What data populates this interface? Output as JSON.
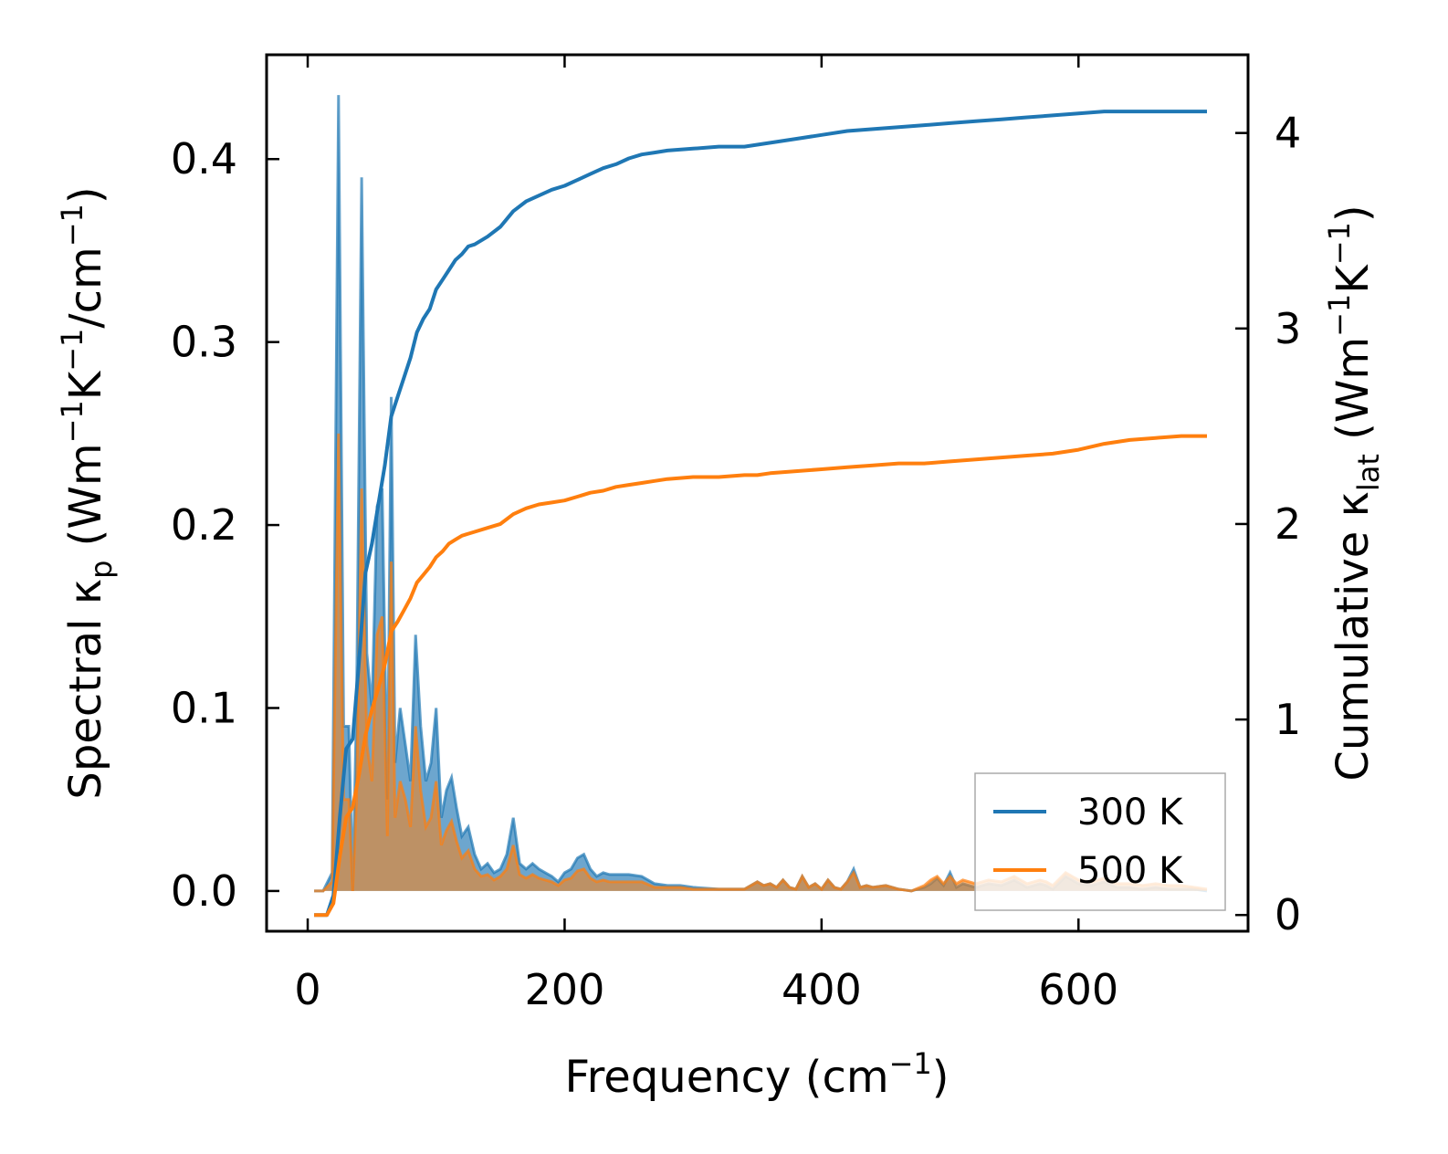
{
  "chart_data": {
    "type": "line",
    "title": "",
    "xlabel": {
      "text": "Frequency (cm",
      "sup": "−1",
      "suffix": ")"
    },
    "ylabel_left": {
      "prefix": "Spectral κ",
      "sub": "p",
      "middle": " (Wm",
      "sup1": "−1",
      "k": "K",
      "sup2": "−1",
      "tail": "/cm",
      "sup3": "−1",
      "end": ")"
    },
    "ylabel_right": {
      "prefix": "Cumulative κ",
      "sub": "lat",
      "middle": " (Wm",
      "sup1": "−1",
      "k": "K",
      "sup2": "−1",
      "end": ")"
    },
    "xlim": [
      -32,
      732
    ],
    "ylim_left": [
      -0.022,
      0.457
    ],
    "ylim_right": [
      -0.083,
      4.4
    ],
    "x_ticks": [
      0,
      200,
      400,
      600
    ],
    "x_tick_labels": [
      "0",
      "200",
      "400",
      "600"
    ],
    "y_left_ticks": [
      0.0,
      0.1,
      0.2,
      0.3,
      0.4
    ],
    "y_left_tick_labels": [
      "0.0",
      "0.1",
      "0.2",
      "0.3",
      "0.4"
    ],
    "y_right_ticks": [
      0,
      1,
      2,
      3,
      4
    ],
    "y_right_tick_labels": [
      "0",
      "1",
      "2",
      "3",
      "4"
    ],
    "colors": {
      "s300": "#1f77b4",
      "s500": "#ff7f0e"
    },
    "legend": {
      "position": "lower-right",
      "entries": [
        "300 K",
        "500 K"
      ]
    },
    "spectral": {
      "x": [
        5,
        12,
        19,
        24,
        28,
        32,
        35,
        38,
        42,
        46,
        50,
        54,
        58,
        62,
        65,
        68,
        72,
        76,
        80,
        84,
        88,
        92,
        96,
        100,
        104,
        108,
        112,
        116,
        120,
        125,
        130,
        135,
        140,
        145,
        150,
        155,
        160,
        165,
        170,
        175,
        180,
        185,
        190,
        195,
        200,
        205,
        210,
        215,
        220,
        225,
        230,
        235,
        240,
        250,
        260,
        270,
        280,
        290,
        300,
        320,
        340,
        350,
        355,
        360,
        365,
        370,
        375,
        380,
        385,
        390,
        395,
        400,
        405,
        410,
        415,
        420,
        425,
        430,
        435,
        440,
        450,
        460,
        470,
        480,
        485,
        490,
        495,
        500,
        505,
        510,
        520,
        530,
        540,
        550,
        560,
        570,
        575,
        580,
        590,
        600,
        610,
        620,
        630,
        640,
        650,
        660,
        670,
        680,
        690,
        700
      ],
      "series": [
        {
          "name": "300 K",
          "values": [
            0,
            0,
            0.01,
            0.435,
            0.09,
            0.09,
            0.0,
            0.1,
            0.39,
            0.13,
            0.1,
            0.21,
            0.22,
            0.05,
            0.27,
            0.07,
            0.1,
            0.08,
            0.06,
            0.14,
            0.09,
            0.06,
            0.07,
            0.1,
            0.04,
            0.055,
            0.062,
            0.045,
            0.03,
            0.035,
            0.02,
            0.012,
            0.015,
            0.01,
            0.012,
            0.02,
            0.04,
            0.015,
            0.012,
            0.015,
            0.012,
            0.01,
            0.008,
            0.005,
            0.01,
            0.012,
            0.018,
            0.02,
            0.012,
            0.008,
            0.01,
            0.009,
            0.009,
            0.009,
            0.008,
            0.004,
            0.003,
            0.003,
            0.002,
            0.001,
            0.001,
            0.005,
            0.003,
            0.004,
            0.002,
            0.006,
            0.002,
            0.001,
            0.008,
            0.002,
            0.004,
            0.001,
            0.006,
            0.002,
            0.001,
            0.005,
            0.012,
            0.002,
            0.003,
            0.002,
            0.003,
            0.001,
            0.0,
            0.002,
            0.004,
            0.007,
            0.003,
            0.01,
            0.002,
            0.004,
            0.002,
            0.004,
            0.003,
            0.006,
            0.002,
            0.004,
            0.003,
            0.001,
            0.008,
            0.004,
            0.003,
            0.005,
            0.002,
            0.002,
            0.001,
            0.002,
            0.001,
            0.001,
            0.001,
            0.0
          ]
        },
        {
          "name": "500 K",
          "values": [
            0,
            0,
            0.005,
            0.25,
            0.05,
            0.05,
            0.0,
            0.05,
            0.22,
            0.08,
            0.06,
            0.14,
            0.15,
            0.03,
            0.18,
            0.04,
            0.06,
            0.05,
            0.035,
            0.09,
            0.055,
            0.035,
            0.04,
            0.06,
            0.025,
            0.033,
            0.038,
            0.027,
            0.018,
            0.022,
            0.012,
            0.008,
            0.009,
            0.006,
            0.008,
            0.012,
            0.025,
            0.009,
            0.007,
            0.009,
            0.007,
            0.006,
            0.005,
            0.003,
            0.006,
            0.007,
            0.011,
            0.012,
            0.007,
            0.005,
            0.006,
            0.005,
            0.005,
            0.005,
            0.005,
            0.002,
            0.002,
            0.002,
            0.001,
            0.001,
            0.001,
            0.005,
            0.003,
            0.004,
            0.002,
            0.006,
            0.002,
            0.001,
            0.008,
            0.002,
            0.004,
            0.001,
            0.006,
            0.002,
            0.001,
            0.005,
            0.01,
            0.002,
            0.003,
            0.002,
            0.003,
            0.001,
            0.0,
            0.003,
            0.006,
            0.008,
            0.004,
            0.008,
            0.004,
            0.006,
            0.004,
            0.006,
            0.005,
            0.008,
            0.004,
            0.006,
            0.005,
            0.003,
            0.01,
            0.006,
            0.005,
            0.007,
            0.004,
            0.004,
            0.003,
            0.004,
            0.003,
            0.003,
            0.002,
            0.001
          ]
        }
      ]
    },
    "cumulative": {
      "x": [
        5,
        10,
        15,
        20,
        25,
        30,
        35,
        40,
        45,
        50,
        55,
        60,
        65,
        70,
        75,
        80,
        85,
        90,
        95,
        100,
        105,
        110,
        115,
        120,
        125,
        130,
        140,
        150,
        160,
        170,
        180,
        190,
        200,
        210,
        220,
        230,
        240,
        250,
        260,
        270,
        280,
        300,
        320,
        340,
        350,
        360,
        380,
        400,
        420,
        440,
        460,
        480,
        500,
        520,
        540,
        560,
        580,
        600,
        620,
        640,
        660,
        680,
        700
      ],
      "series": [
        {
          "name": "300 K",
          "values": [
            0,
            0,
            0,
            0.1,
            0.5,
            0.85,
            0.9,
            1.3,
            1.75,
            1.9,
            2.1,
            2.3,
            2.55,
            2.65,
            2.75,
            2.85,
            2.98,
            3.05,
            3.1,
            3.2,
            3.25,
            3.3,
            3.35,
            3.38,
            3.42,
            3.43,
            3.47,
            3.52,
            3.6,
            3.65,
            3.68,
            3.71,
            3.73,
            3.76,
            3.79,
            3.82,
            3.84,
            3.87,
            3.89,
            3.9,
            3.91,
            3.92,
            3.93,
            3.93,
            3.94,
            3.95,
            3.97,
            3.99,
            4.01,
            4.02,
            4.03,
            4.04,
            4.05,
            4.06,
            4.07,
            4.08,
            4.09,
            4.1,
            4.11,
            4.11,
            4.11,
            4.11,
            4.11
          ]
        },
        {
          "name": "500 K",
          "values": [
            0,
            0,
            0,
            0.06,
            0.3,
            0.5,
            0.55,
            0.72,
            0.92,
            1.05,
            1.16,
            1.28,
            1.45,
            1.5,
            1.56,
            1.62,
            1.7,
            1.74,
            1.78,
            1.83,
            1.86,
            1.9,
            1.92,
            1.94,
            1.95,
            1.96,
            1.98,
            2.0,
            2.05,
            2.08,
            2.1,
            2.11,
            2.12,
            2.14,
            2.16,
            2.17,
            2.19,
            2.2,
            2.21,
            2.22,
            2.23,
            2.24,
            2.24,
            2.25,
            2.25,
            2.26,
            2.27,
            2.28,
            2.29,
            2.3,
            2.31,
            2.31,
            2.32,
            2.33,
            2.34,
            2.35,
            2.36,
            2.38,
            2.41,
            2.43,
            2.44,
            2.45,
            2.45
          ]
        }
      ]
    }
  }
}
